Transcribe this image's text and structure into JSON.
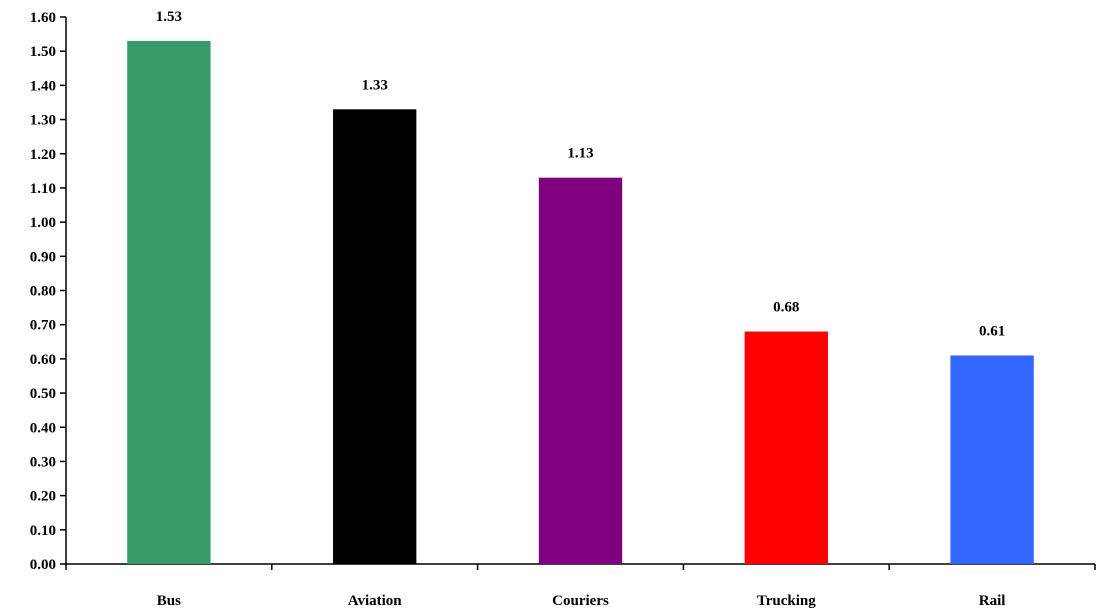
{
  "chart_data": {
    "type": "bar",
    "title": "",
    "xlabel": "",
    "ylabel": "",
    "categories": [
      "Bus",
      "Aviation",
      "Couriers",
      "Trucking",
      "Rail"
    ],
    "values": [
      1.53,
      1.33,
      1.13,
      0.68,
      0.61
    ],
    "value_labels": [
      "1.53",
      "1.33",
      "1.13",
      "0.68",
      "0.61"
    ],
    "colors": [
      "#379b69",
      "#000000",
      "#7f007f",
      "#ff0000",
      "#3366ff"
    ],
    "ylim": [
      0,
      1.6
    ],
    "yticks": [
      0,
      0.1,
      0.2,
      0.3,
      0.4,
      0.5,
      0.6,
      0.7,
      0.8,
      0.9,
      1.0,
      1.1,
      1.2,
      1.3,
      1.4,
      1.5,
      1.6
    ],
    "ytick_labels": [
      "0.00",
      "0.10",
      "0.20",
      "0.30",
      "0.40",
      "0.50",
      "0.60",
      "0.70",
      "0.80",
      "0.90",
      "1.00",
      "1.10",
      "1.20",
      "1.30",
      "1.40",
      "1.50",
      "1.60"
    ],
    "grid": false,
    "legend": "none"
  }
}
